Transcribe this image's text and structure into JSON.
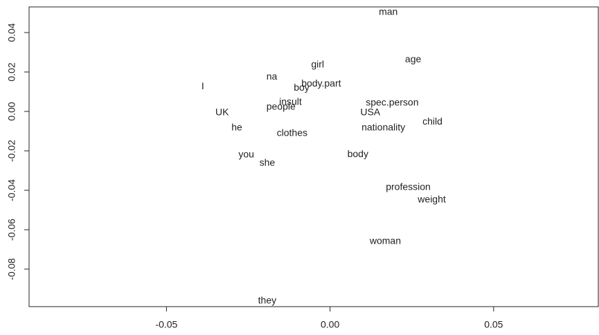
{
  "chart_data": {
    "type": "scatter",
    "labels": [
      "man",
      "age",
      "girl",
      "na",
      "body.part",
      "boy",
      "I",
      "insult",
      "spec.person",
      "people",
      "UK",
      "USA",
      "child",
      "he",
      "nationality",
      "clothes",
      "body",
      "you",
      "she",
      "profession",
      "weight",
      "woman",
      "they"
    ],
    "x": [
      0.0178,
      0.0254,
      -0.0038,
      -0.0178,
      -0.0027,
      -0.0087,
      -0.0389,
      -0.0121,
      0.019,
      -0.015,
      -0.033,
      0.0123,
      0.0313,
      -0.0285,
      0.0163,
      -0.0116,
      0.0085,
      -0.0256,
      -0.0192,
      0.0239,
      0.0311,
      0.0169,
      -0.0192
    ],
    "y": [
      0.0502,
      0.0263,
      0.0235,
      0.0175,
      0.014,
      0.0119,
      0.0126,
      0.0046,
      0.0042,
      0.0021,
      -0.0007,
      -0.0007,
      -0.0053,
      -0.0084,
      -0.0084,
      -0.0112,
      -0.0218,
      -0.0221,
      -0.0263,
      -0.0386,
      -0.0449,
      -0.066,
      -0.0961
    ],
    "color": "#222222",
    "xlim": [
      -0.092,
      0.082
    ],
    "ylim": [
      -0.099,
      0.053
    ],
    "xticks": [
      -0.05,
      {
        "value": 0,
        "label": "0.00"
      },
      0.05
    ],
    "yticks": [
      -0.08,
      -0.06,
      -0.04,
      -0.02,
      {
        "value": 0,
        "label": "0.00"
      },
      0.02,
      0.04
    ]
  }
}
